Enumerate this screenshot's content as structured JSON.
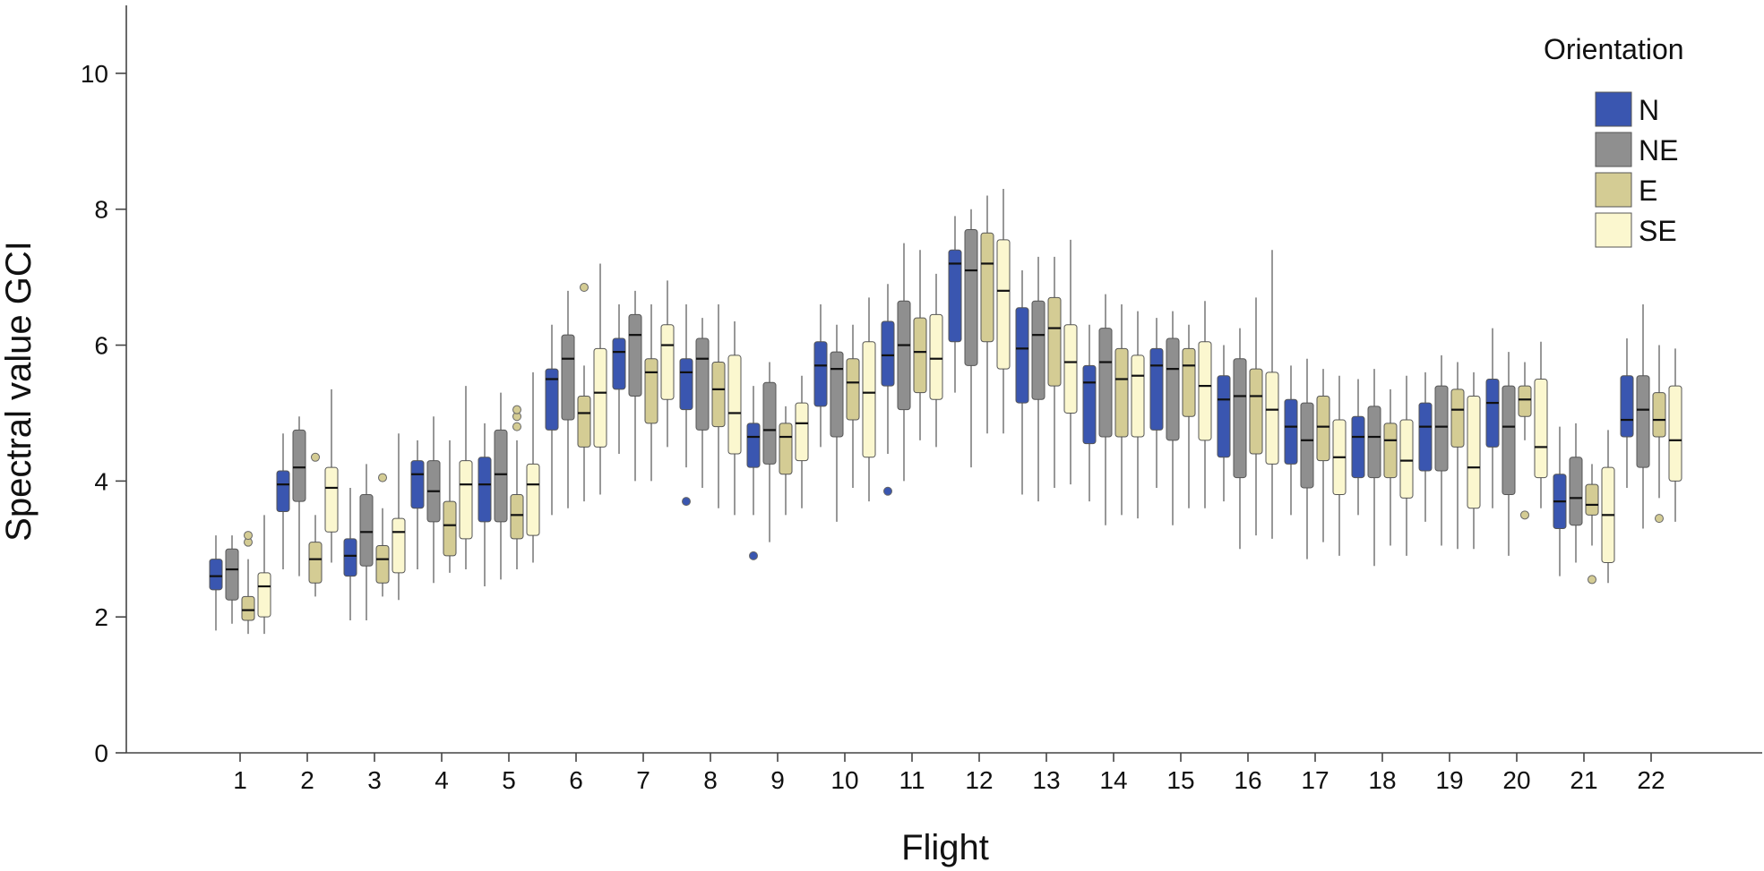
{
  "chart_data": {
    "type": "boxplot",
    "title": "",
    "xlabel": "Flight",
    "ylabel": "Spectral value GCI",
    "ylim": [
      0,
      11
    ],
    "yticks": [
      0,
      2,
      4,
      6,
      8,
      10
    ],
    "grid": false,
    "legend": {
      "title": "Orientation",
      "placement": "top-right"
    },
    "categories": [
      "1",
      "2",
      "3",
      "4",
      "5",
      "6",
      "7",
      "8",
      "9",
      "10",
      "11",
      "12",
      "13",
      "14",
      "15",
      "16",
      "17",
      "18",
      "19",
      "20",
      "21",
      "22"
    ],
    "series": [
      {
        "name": "N",
        "color": "#3a56b0",
        "boxes": [
          {
            "lo": 1.8,
            "q1": 2.4,
            "med": 2.6,
            "q3": 2.85,
            "hi": 3.2,
            "out": []
          },
          {
            "lo": 2.7,
            "q1": 3.55,
            "med": 3.95,
            "q3": 4.15,
            "hi": 4.7,
            "out": []
          },
          {
            "lo": 1.95,
            "q1": 2.6,
            "med": 2.9,
            "q3": 3.15,
            "hi": 3.9,
            "out": []
          },
          {
            "lo": 2.7,
            "q1": 3.6,
            "med": 4.1,
            "q3": 4.3,
            "hi": 4.6,
            "out": []
          },
          {
            "lo": 2.45,
            "q1": 3.4,
            "med": 3.95,
            "q3": 4.35,
            "hi": 4.85,
            "out": []
          },
          {
            "lo": 3.5,
            "q1": 4.75,
            "med": 5.5,
            "q3": 5.65,
            "hi": 6.3,
            "out": []
          },
          {
            "lo": 4.4,
            "q1": 5.35,
            "med": 5.9,
            "q3": 6.1,
            "hi": 6.6,
            "out": []
          },
          {
            "lo": 4.2,
            "q1": 5.05,
            "med": 5.6,
            "q3": 5.8,
            "hi": 6.6,
            "out": [
              3.7
            ]
          },
          {
            "lo": 3.5,
            "q1": 4.2,
            "med": 4.65,
            "q3": 4.85,
            "hi": 5.4,
            "out": [
              2.9
            ]
          },
          {
            "lo": 4.5,
            "q1": 5.1,
            "med": 5.7,
            "q3": 6.05,
            "hi": 6.6,
            "out": []
          },
          {
            "lo": 4.4,
            "q1": 5.4,
            "med": 5.85,
            "q3": 6.35,
            "hi": 6.9,
            "out": [
              3.85
            ]
          },
          {
            "lo": 5.3,
            "q1": 6.05,
            "med": 7.2,
            "q3": 7.4,
            "hi": 7.9,
            "out": []
          },
          {
            "lo": 3.8,
            "q1": 5.15,
            "med": 5.95,
            "q3": 6.55,
            "hi": 7.1,
            "out": []
          },
          {
            "lo": 3.7,
            "q1": 4.55,
            "med": 5.45,
            "q3": 5.7,
            "hi": 6.3,
            "out": []
          },
          {
            "lo": 3.9,
            "q1": 4.75,
            "med": 5.7,
            "q3": 5.95,
            "hi": 6.4,
            "out": []
          },
          {
            "lo": 3.7,
            "q1": 4.35,
            "med": 5.2,
            "q3": 5.55,
            "hi": 6.0,
            "out": []
          },
          {
            "lo": 3.5,
            "q1": 4.25,
            "med": 4.8,
            "q3": 5.2,
            "hi": 5.7,
            "out": []
          },
          {
            "lo": 3.5,
            "q1": 4.05,
            "med": 4.65,
            "q3": 4.95,
            "hi": 5.5,
            "out": []
          },
          {
            "lo": 3.4,
            "q1": 4.15,
            "med": 4.8,
            "q3": 5.15,
            "hi": 5.6,
            "out": []
          },
          {
            "lo": 3.6,
            "q1": 4.5,
            "med": 5.15,
            "q3": 5.5,
            "hi": 6.25,
            "out": []
          },
          {
            "lo": 2.6,
            "q1": 3.3,
            "med": 3.7,
            "q3": 4.1,
            "hi": 4.8,
            "out": []
          },
          {
            "lo": 3.9,
            "q1": 4.65,
            "med": 4.9,
            "q3": 5.55,
            "hi": 6.1,
            "out": []
          }
        ]
      },
      {
        "name": "NE",
        "color": "#8f8f8f",
        "boxes": [
          {
            "lo": 1.9,
            "q1": 2.25,
            "med": 2.7,
            "q3": 3.0,
            "hi": 3.2,
            "out": []
          },
          {
            "lo": 2.6,
            "q1": 3.7,
            "med": 4.2,
            "q3": 4.75,
            "hi": 4.95,
            "out": []
          },
          {
            "lo": 1.95,
            "q1": 2.75,
            "med": 3.25,
            "q3": 3.8,
            "hi": 4.25,
            "out": []
          },
          {
            "lo": 2.5,
            "q1": 3.4,
            "med": 3.85,
            "q3": 4.3,
            "hi": 4.95,
            "out": []
          },
          {
            "lo": 2.55,
            "q1": 3.4,
            "med": 4.1,
            "q3": 4.75,
            "hi": 5.3,
            "out": []
          },
          {
            "lo": 3.6,
            "q1": 4.9,
            "med": 5.8,
            "q3": 6.15,
            "hi": 6.8,
            "out": []
          },
          {
            "lo": 4.0,
            "q1": 5.25,
            "med": 6.15,
            "q3": 6.45,
            "hi": 6.8,
            "out": []
          },
          {
            "lo": 3.9,
            "q1": 4.75,
            "med": 5.8,
            "q3": 6.1,
            "hi": 6.4,
            "out": []
          },
          {
            "lo": 3.1,
            "q1": 4.25,
            "med": 4.75,
            "q3": 5.45,
            "hi": 5.75,
            "out": []
          },
          {
            "lo": 3.4,
            "q1": 4.65,
            "med": 5.65,
            "q3": 5.9,
            "hi": 6.3,
            "out": []
          },
          {
            "lo": 4.0,
            "q1": 5.05,
            "med": 6.0,
            "q3": 6.65,
            "hi": 7.5,
            "out": []
          },
          {
            "lo": 4.2,
            "q1": 5.7,
            "med": 7.1,
            "q3": 7.7,
            "hi": 8.0,
            "out": []
          },
          {
            "lo": 3.7,
            "q1": 5.2,
            "med": 6.15,
            "q3": 6.65,
            "hi": 7.3,
            "out": []
          },
          {
            "lo": 3.35,
            "q1": 4.65,
            "med": 5.75,
            "q3": 6.25,
            "hi": 6.75,
            "out": []
          },
          {
            "lo": 3.35,
            "q1": 4.6,
            "med": 5.65,
            "q3": 6.1,
            "hi": 6.5,
            "out": []
          },
          {
            "lo": 3.0,
            "q1": 4.05,
            "med": 5.25,
            "q3": 5.8,
            "hi": 6.25,
            "out": []
          },
          {
            "lo": 2.85,
            "q1": 3.9,
            "med": 4.6,
            "q3": 5.15,
            "hi": 5.8,
            "out": []
          },
          {
            "lo": 2.75,
            "q1": 4.05,
            "med": 4.65,
            "q3": 5.1,
            "hi": 5.65,
            "out": []
          },
          {
            "lo": 3.05,
            "q1": 4.15,
            "med": 4.8,
            "q3": 5.4,
            "hi": 5.85,
            "out": []
          },
          {
            "lo": 2.9,
            "q1": 3.8,
            "med": 4.8,
            "q3": 5.4,
            "hi": 5.9,
            "out": []
          },
          {
            "lo": 2.8,
            "q1": 3.35,
            "med": 3.75,
            "q3": 4.35,
            "hi": 4.85,
            "out": []
          },
          {
            "lo": 3.3,
            "q1": 4.2,
            "med": 5.05,
            "q3": 5.55,
            "hi": 6.6,
            "out": []
          }
        ]
      },
      {
        "name": "E",
        "color": "#d4cc94",
        "boxes": [
          {
            "lo": 1.75,
            "q1": 1.95,
            "med": 2.1,
            "q3": 2.3,
            "hi": 2.85,
            "out": [
              3.1,
              3.2
            ]
          },
          {
            "lo": 2.3,
            "q1": 2.5,
            "med": 2.85,
            "q3": 3.1,
            "hi": 3.5,
            "out": [
              4.35
            ]
          },
          {
            "lo": 2.3,
            "q1": 2.5,
            "med": 2.85,
            "q3": 3.05,
            "hi": 3.6,
            "out": [
              4.05
            ]
          },
          {
            "lo": 2.65,
            "q1": 2.9,
            "med": 3.35,
            "q3": 3.7,
            "hi": 4.6,
            "out": []
          },
          {
            "lo": 2.7,
            "q1": 3.15,
            "med": 3.5,
            "q3": 3.8,
            "hi": 4.6,
            "out": [
              4.8,
              4.95,
              5.05
            ]
          },
          {
            "lo": 3.7,
            "q1": 4.5,
            "med": 5.0,
            "q3": 5.25,
            "hi": 5.7,
            "out": [
              6.85
            ]
          },
          {
            "lo": 4.0,
            "q1": 4.85,
            "med": 5.6,
            "q3": 5.8,
            "hi": 6.6,
            "out": []
          },
          {
            "lo": 3.6,
            "q1": 4.8,
            "med": 5.35,
            "q3": 5.75,
            "hi": 6.6,
            "out": []
          },
          {
            "lo": 3.5,
            "q1": 4.1,
            "med": 4.65,
            "q3": 4.85,
            "hi": 5.1,
            "out": []
          },
          {
            "lo": 3.9,
            "q1": 4.9,
            "med": 5.45,
            "q3": 5.8,
            "hi": 6.3,
            "out": []
          },
          {
            "lo": 4.6,
            "q1": 5.3,
            "med": 5.9,
            "q3": 6.4,
            "hi": 7.4,
            "out": []
          },
          {
            "lo": 4.7,
            "q1": 6.05,
            "med": 7.2,
            "q3": 7.65,
            "hi": 8.2,
            "out": []
          },
          {
            "lo": 3.9,
            "q1": 5.4,
            "med": 6.25,
            "q3": 6.7,
            "hi": 7.3,
            "out": []
          },
          {
            "lo": 3.5,
            "q1": 4.65,
            "med": 5.5,
            "q3": 5.95,
            "hi": 6.6,
            "out": []
          },
          {
            "lo": 3.6,
            "q1": 4.95,
            "med": 5.7,
            "q3": 5.95,
            "hi": 6.3,
            "out": []
          },
          {
            "lo": 3.2,
            "q1": 4.4,
            "med": 5.25,
            "q3": 5.65,
            "hi": 6.7,
            "out": []
          },
          {
            "lo": 3.1,
            "q1": 4.3,
            "med": 4.8,
            "q3": 5.25,
            "hi": 5.65,
            "out": []
          },
          {
            "lo": 3.05,
            "q1": 4.05,
            "med": 4.6,
            "q3": 4.85,
            "hi": 5.35,
            "out": []
          },
          {
            "lo": 3.0,
            "q1": 4.5,
            "med": 5.05,
            "q3": 5.35,
            "hi": 5.75,
            "out": []
          },
          {
            "lo": 4.6,
            "q1": 4.95,
            "med": 5.2,
            "q3": 5.4,
            "hi": 5.75,
            "out": [
              3.5
            ]
          },
          {
            "lo": 3.05,
            "q1": 3.5,
            "med": 3.65,
            "q3": 3.95,
            "hi": 4.25,
            "out": [
              2.55
            ]
          },
          {
            "lo": 3.75,
            "q1": 4.65,
            "med": 4.9,
            "q3": 5.3,
            "hi": 6.0,
            "out": [
              3.45
            ]
          }
        ]
      },
      {
        "name": "SE",
        "color": "#fbf7cf",
        "boxes": [
          {
            "lo": 1.75,
            "q1": 2.0,
            "med": 2.45,
            "q3": 2.65,
            "hi": 3.5,
            "out": []
          },
          {
            "lo": 2.8,
            "q1": 3.25,
            "med": 3.9,
            "q3": 4.2,
            "hi": 5.35,
            "out": []
          },
          {
            "lo": 2.25,
            "q1": 2.65,
            "med": 3.25,
            "q3": 3.45,
            "hi": 4.7,
            "out": []
          },
          {
            "lo": 2.7,
            "q1": 3.15,
            "med": 3.95,
            "q3": 4.3,
            "hi": 5.4,
            "out": []
          },
          {
            "lo": 2.8,
            "q1": 3.2,
            "med": 3.95,
            "q3": 4.25,
            "hi": 5.6,
            "out": []
          },
          {
            "lo": 3.8,
            "q1": 4.5,
            "med": 5.3,
            "q3": 5.95,
            "hi": 7.2,
            "out": []
          },
          {
            "lo": 4.5,
            "q1": 5.2,
            "med": 6.0,
            "q3": 6.3,
            "hi": 6.95,
            "out": []
          },
          {
            "lo": 3.5,
            "q1": 4.4,
            "med": 5.0,
            "q3": 5.85,
            "hi": 6.35,
            "out": []
          },
          {
            "lo": 3.6,
            "q1": 4.3,
            "med": 4.85,
            "q3": 5.15,
            "hi": 5.55,
            "out": []
          },
          {
            "lo": 3.7,
            "q1": 4.35,
            "med": 5.3,
            "q3": 6.05,
            "hi": 6.7,
            "out": []
          },
          {
            "lo": 4.5,
            "q1": 5.2,
            "med": 5.8,
            "q3": 6.45,
            "hi": 7.05,
            "out": []
          },
          {
            "lo": 4.7,
            "q1": 5.65,
            "med": 6.8,
            "q3": 7.55,
            "hi": 8.3,
            "out": []
          },
          {
            "lo": 3.95,
            "q1": 5.0,
            "med": 5.75,
            "q3": 6.3,
            "hi": 7.55,
            "out": []
          },
          {
            "lo": 3.45,
            "q1": 4.65,
            "med": 5.55,
            "q3": 5.85,
            "hi": 6.5,
            "out": []
          },
          {
            "lo": 3.6,
            "q1": 4.6,
            "med": 5.4,
            "q3": 6.05,
            "hi": 6.65,
            "out": []
          },
          {
            "lo": 3.15,
            "q1": 4.25,
            "med": 5.05,
            "q3": 5.6,
            "hi": 7.4,
            "out": []
          },
          {
            "lo": 2.9,
            "q1": 3.8,
            "med": 4.35,
            "q3": 4.9,
            "hi": 5.55,
            "out": []
          },
          {
            "lo": 2.9,
            "q1": 3.75,
            "med": 4.3,
            "q3": 4.9,
            "hi": 5.55,
            "out": []
          },
          {
            "lo": 3.0,
            "q1": 3.6,
            "med": 4.2,
            "q3": 5.25,
            "hi": 5.6,
            "out": []
          },
          {
            "lo": 3.6,
            "q1": 4.05,
            "med": 4.5,
            "q3": 5.5,
            "hi": 6.05,
            "out": []
          },
          {
            "lo": 2.5,
            "q1": 2.8,
            "med": 3.5,
            "q3": 4.2,
            "hi": 4.75,
            "out": []
          },
          {
            "lo": 3.4,
            "q1": 4.0,
            "med": 4.6,
            "q3": 5.4,
            "hi": 5.95,
            "out": []
          }
        ]
      }
    ]
  }
}
